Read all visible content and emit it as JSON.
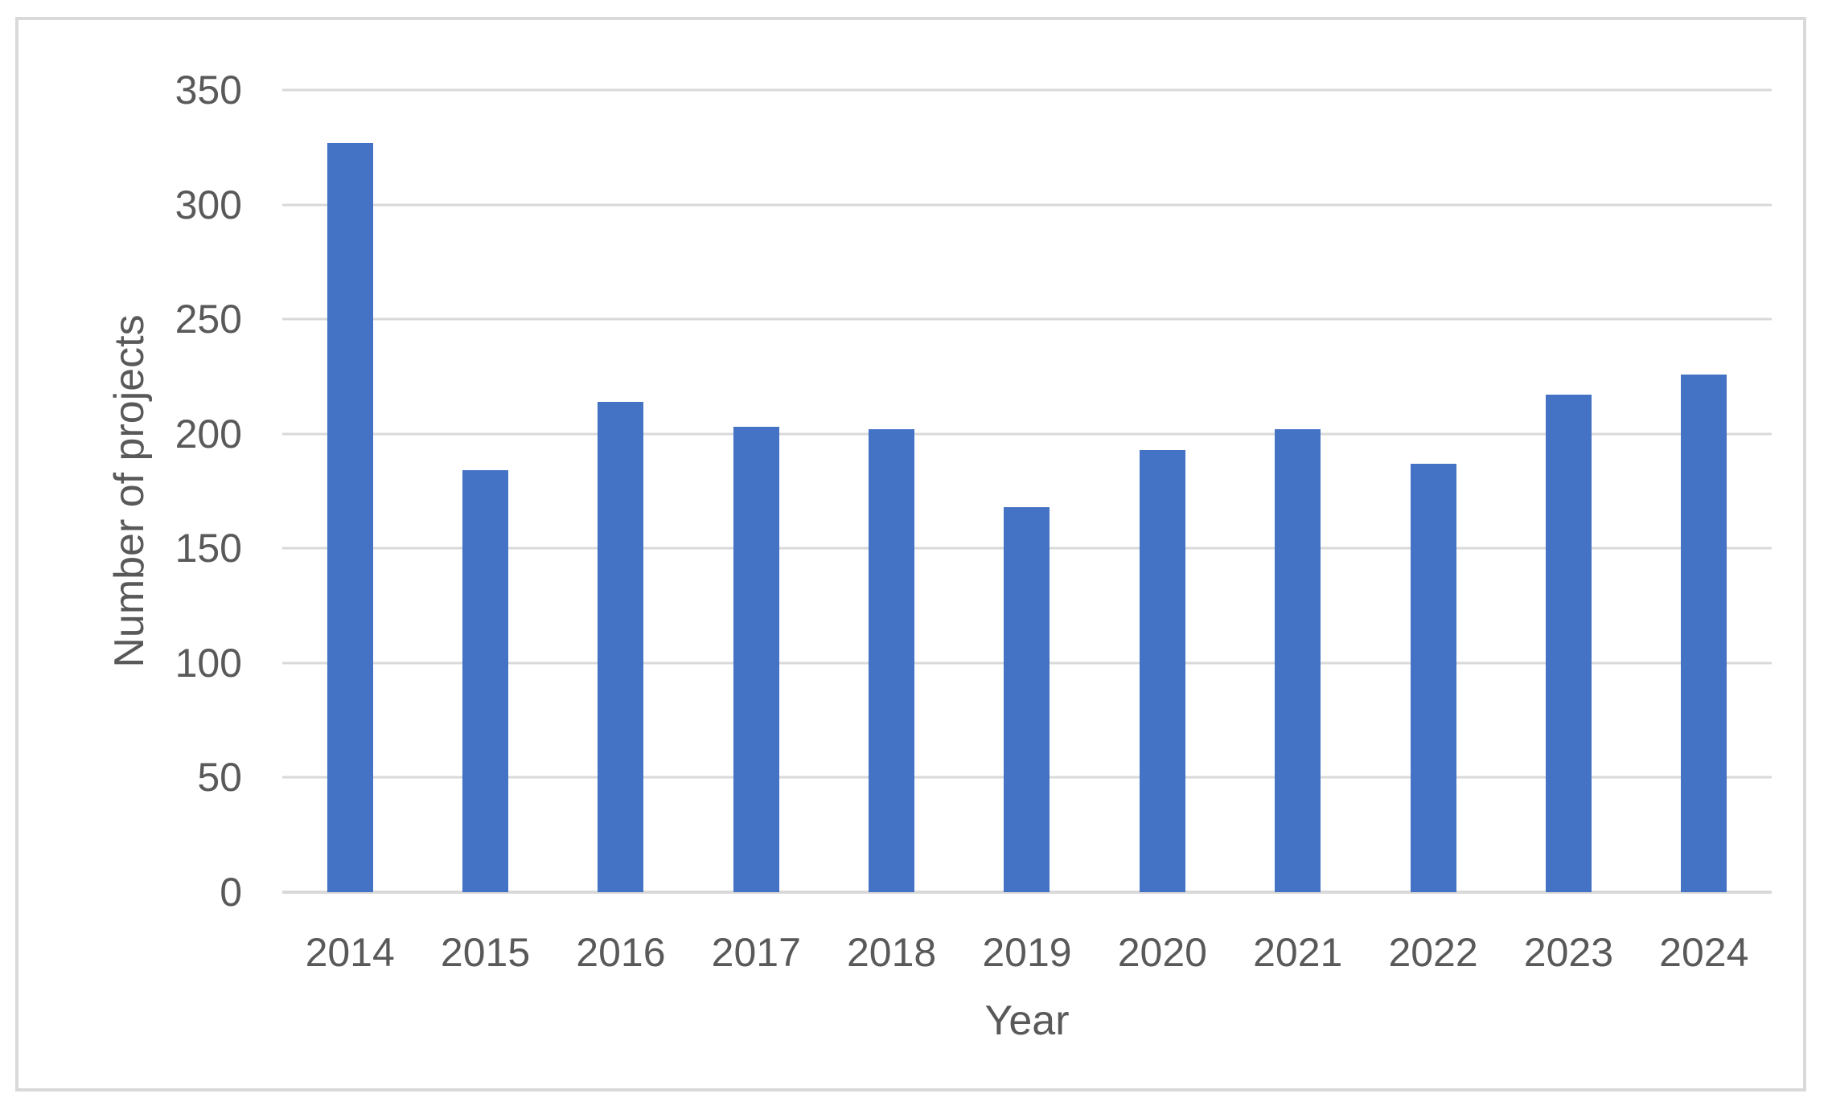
{
  "chart_data": {
    "type": "bar",
    "categories": [
      "2014",
      "2015",
      "2016",
      "2017",
      "2018",
      "2019",
      "2020",
      "2021",
      "2022",
      "2023",
      "2024"
    ],
    "values": [
      327,
      184,
      214,
      203,
      202,
      168,
      193,
      202,
      187,
      217,
      226
    ],
    "xlabel": "Year",
    "ylabel": "Number of projects",
    "ylim": [
      0,
      350
    ],
    "yticks": [
      0,
      50,
      100,
      150,
      200,
      250,
      300,
      350
    ],
    "grid": "horizontal",
    "legend": "none",
    "bar_color": "#4472C4"
  },
  "colors": {
    "bar": "#4472C4",
    "gridline": "#D9D9D9",
    "axis_line": "#D9D9D9",
    "text": "#595959",
    "frame_border": "#D9D9D9",
    "background": "#FFFFFF"
  }
}
